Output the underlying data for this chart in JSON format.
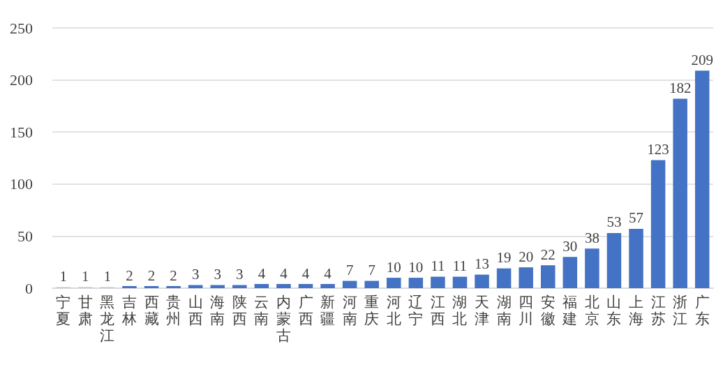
{
  "chart_data": {
    "type": "bar",
    "categories": [
      "宁夏",
      "甘肃",
      "黑龙江",
      "吉林",
      "西藏",
      "贵州",
      "山西",
      "海南",
      "陕西",
      "云南",
      "内蒙古",
      "广西",
      "新疆",
      "河南",
      "重庆",
      "河北",
      "辽宁",
      "江西",
      "湖北",
      "天津",
      "湖南",
      "四川",
      "安徽",
      "福建",
      "北京",
      "山东",
      "上海",
      "江苏",
      "浙江",
      "广东"
    ],
    "values": [
      1,
      1,
      1,
      2,
      2,
      2,
      3,
      3,
      3,
      4,
      4,
      4,
      4,
      7,
      7,
      10,
      10,
      11,
      11,
      13,
      19,
      20,
      22,
      30,
      38,
      53,
      57,
      123,
      182,
      209
    ],
    "colors": [
      "#b4c7e7",
      "#b4c7e7",
      "#b4c7e7",
      "#4472c4",
      "#4472c4",
      "#4472c4",
      "#4472c4",
      "#4472c4",
      "#4472c4",
      "#4472c4",
      "#4472c4",
      "#4472c4",
      "#4472c4",
      "#4472c4",
      "#4472c4",
      "#4472c4",
      "#4472c4",
      "#4472c4",
      "#4472c4",
      "#4472c4",
      "#4472c4",
      "#4472c4",
      "#4472c4",
      "#4472c4",
      "#4472c4",
      "#4472c4",
      "#4472c4",
      "#4472c4",
      "#4472c4",
      "#4472c4"
    ],
    "ylim": [
      0,
      250
    ],
    "yticks": [
      0,
      50,
      100,
      150,
      200,
      250
    ],
    "grid": "y",
    "data_labels": true
  }
}
